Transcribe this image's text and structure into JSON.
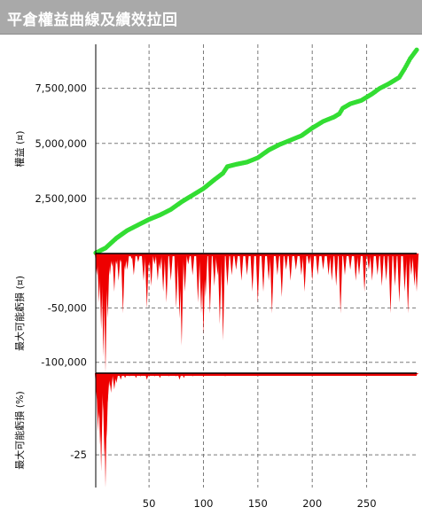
{
  "window": {
    "title": "平倉權益曲線及績效拉回"
  },
  "colors": {
    "equity_point": "#33dd33",
    "equity_line": "#1a1a1a",
    "drawdown_fill": "#ee0000",
    "grid": "#7a7a7a",
    "title_bg": "#a9a9a9"
  },
  "chart_data": [
    {
      "type": "scatter",
      "ylabel": "權益 (¤)",
      "x_range": [
        1,
        296
      ],
      "ylim": [
        0,
        9500000
      ],
      "y_ticks": [
        2500000,
        5000000,
        7500000
      ],
      "y_tick_labels": [
        "2,500,000",
        "5,000,000",
        "7,500,000"
      ],
      "grid": true,
      "anchors": [
        [
          1,
          30000
        ],
        [
          10,
          250000
        ],
        [
          20,
          700000
        ],
        [
          30,
          1050000
        ],
        [
          40,
          1300000
        ],
        [
          50,
          1550000
        ],
        [
          60,
          1750000
        ],
        [
          70,
          2000000
        ],
        [
          80,
          2350000
        ],
        [
          90,
          2650000
        ],
        [
          100,
          2950000
        ],
        [
          110,
          3350000
        ],
        [
          118,
          3650000
        ],
        [
          122,
          3950000
        ],
        [
          130,
          4050000
        ],
        [
          140,
          4150000
        ],
        [
          150,
          4350000
        ],
        [
          160,
          4700000
        ],
        [
          170,
          4950000
        ],
        [
          180,
          5150000
        ],
        [
          190,
          5350000
        ],
        [
          200,
          5700000
        ],
        [
          210,
          6000000
        ],
        [
          220,
          6200000
        ],
        [
          225,
          6350000
        ],
        [
          228,
          6600000
        ],
        [
          235,
          6800000
        ],
        [
          245,
          6950000
        ],
        [
          255,
          7250000
        ],
        [
          262,
          7500000
        ],
        [
          270,
          7700000
        ],
        [
          275,
          7850000
        ],
        [
          280,
          8000000
        ],
        [
          285,
          8400000
        ],
        [
          290,
          8850000
        ],
        [
          296,
          9250000
        ]
      ]
    },
    {
      "type": "area",
      "ylabel": "最大可能虧損 (¤)",
      "x_range": [
        1,
        296
      ],
      "ylim": [
        -110000,
        0
      ],
      "y_ticks": [
        -50000,
        -100000
      ],
      "y_tick_labels": [
        "-50,000",
        "-100,000"
      ],
      "grid": true,
      "spikes": [
        [
          2,
          -20000
        ],
        [
          4,
          -45000
        ],
        [
          6,
          -70000
        ],
        [
          8,
          -95000
        ],
        [
          10,
          -110000
        ],
        [
          12,
          -60000
        ],
        [
          14,
          -20000
        ],
        [
          16,
          -12000
        ],
        [
          18,
          -35000
        ],
        [
          20,
          -10000
        ],
        [
          22,
          -25000
        ],
        [
          24,
          -8000
        ],
        [
          26,
          -55000
        ],
        [
          28,
          -15000
        ],
        [
          30,
          -15000
        ],
        [
          34,
          -5000
        ],
        [
          36,
          -20000
        ],
        [
          40,
          -8000
        ],
        [
          45,
          -25000
        ],
        [
          48,
          -50000
        ],
        [
          50,
          -12000
        ],
        [
          52,
          -30000
        ],
        [
          55,
          -10000
        ],
        [
          58,
          -25000
        ],
        [
          60,
          -15000
        ],
        [
          63,
          -35000
        ],
        [
          66,
          -45000
        ],
        [
          70,
          -25000
        ],
        [
          75,
          -50000
        ],
        [
          78,
          -60000
        ],
        [
          80,
          -85000
        ],
        [
          83,
          -35000
        ],
        [
          86,
          -10000
        ],
        [
          90,
          -20000
        ],
        [
          95,
          -45000
        ],
        [
          98,
          -55000
        ],
        [
          100,
          -75000
        ],
        [
          102,
          -40000
        ],
        [
          106,
          -55000
        ],
        [
          110,
          -30000
        ],
        [
          113,
          -20000
        ],
        [
          115,
          -65000
        ],
        [
          118,
          -80000
        ],
        [
          122,
          -30000
        ],
        [
          126,
          -20000
        ],
        [
          130,
          -15000
        ],
        [
          135,
          -25000
        ],
        [
          140,
          -20000
        ],
        [
          145,
          -35000
        ],
        [
          150,
          -45000
        ],
        [
          155,
          -35000
        ],
        [
          160,
          -25000
        ],
        [
          163,
          -55000
        ],
        [
          168,
          -20000
        ],
        [
          172,
          -40000
        ],
        [
          176,
          -15000
        ],
        [
          180,
          -25000
        ],
        [
          185,
          -15000
        ],
        [
          190,
          -20000
        ],
        [
          193,
          -35000
        ],
        [
          197,
          -10000
        ],
        [
          200,
          -25000
        ],
        [
          205,
          -20000
        ],
        [
          210,
          -15000
        ],
        [
          215,
          -20000
        ],
        [
          218,
          -25000
        ],
        [
          222,
          -30000
        ],
        [
          226,
          -55000
        ],
        [
          230,
          -20000
        ],
        [
          235,
          -15000
        ],
        [
          240,
          -25000
        ],
        [
          243,
          -20000
        ],
        [
          248,
          -35000
        ],
        [
          252,
          -15000
        ],
        [
          255,
          -25000
        ],
        [
          260,
          -20000
        ],
        [
          264,
          -30000
        ],
        [
          268,
          -25000
        ],
        [
          272,
          -55000
        ],
        [
          276,
          -30000
        ],
        [
          280,
          -45000
        ],
        [
          285,
          -35000
        ],
        [
          288,
          -55000
        ],
        [
          291,
          -20000
        ],
        [
          294,
          -30000
        ],
        [
          296,
          -35000
        ]
      ]
    },
    {
      "type": "area",
      "ylabel": "最大可能虧損 (%)",
      "x_range": [
        1,
        296
      ],
      "ylim": [
        -35,
        0
      ],
      "y_ticks": [
        -25
      ],
      "y_tick_labels": [
        "-25"
      ],
      "x_ticks": [
        50,
        100,
        150,
        200,
        250
      ],
      "x_tick_labels": [
        "50",
        "100",
        "150",
        "200",
        "250"
      ],
      "grid": true,
      "spikes": [
        [
          2,
          -8
        ],
        [
          3,
          -18
        ],
        [
          4,
          -14
        ],
        [
          5,
          -22
        ],
        [
          6,
          -30
        ],
        [
          8,
          -12
        ],
        [
          9,
          -26
        ],
        [
          10,
          -35
        ],
        [
          11,
          -20
        ],
        [
          12,
          -9
        ],
        [
          14,
          -4
        ],
        [
          15,
          -6
        ],
        [
          18,
          -5
        ],
        [
          20,
          -3
        ],
        [
          24,
          -2
        ],
        [
          28,
          -1.5
        ],
        [
          32,
          -1
        ],
        [
          38,
          -1.5
        ],
        [
          42,
          -1
        ],
        [
          48,
          -2
        ],
        [
          55,
          -1
        ],
        [
          60,
          -1.5
        ],
        [
          68,
          -1
        ],
        [
          75,
          -1
        ],
        [
          78,
          -2
        ],
        [
          82,
          -1.5
        ],
        [
          90,
          -1
        ],
        [
          100,
          -1.2
        ],
        [
          110,
          -0.8
        ],
        [
          120,
          -1
        ],
        [
          130,
          -0.6
        ],
        [
          140,
          -0.5
        ],
        [
          150,
          -0.6
        ],
        [
          160,
          -0.5
        ],
        [
          170,
          -0.5
        ],
        [
          180,
          -0.4
        ],
        [
          190,
          -0.5
        ],
        [
          200,
          -0.5
        ],
        [
          210,
          -0.4
        ],
        [
          220,
          -0.5
        ],
        [
          226,
          -0.7
        ],
        [
          240,
          -0.4
        ],
        [
          250,
          -0.5
        ],
        [
          260,
          -0.4
        ],
        [
          270,
          -0.6
        ],
        [
          280,
          -0.5
        ],
        [
          290,
          -0.4
        ],
        [
          296,
          -0.5
        ]
      ]
    }
  ]
}
